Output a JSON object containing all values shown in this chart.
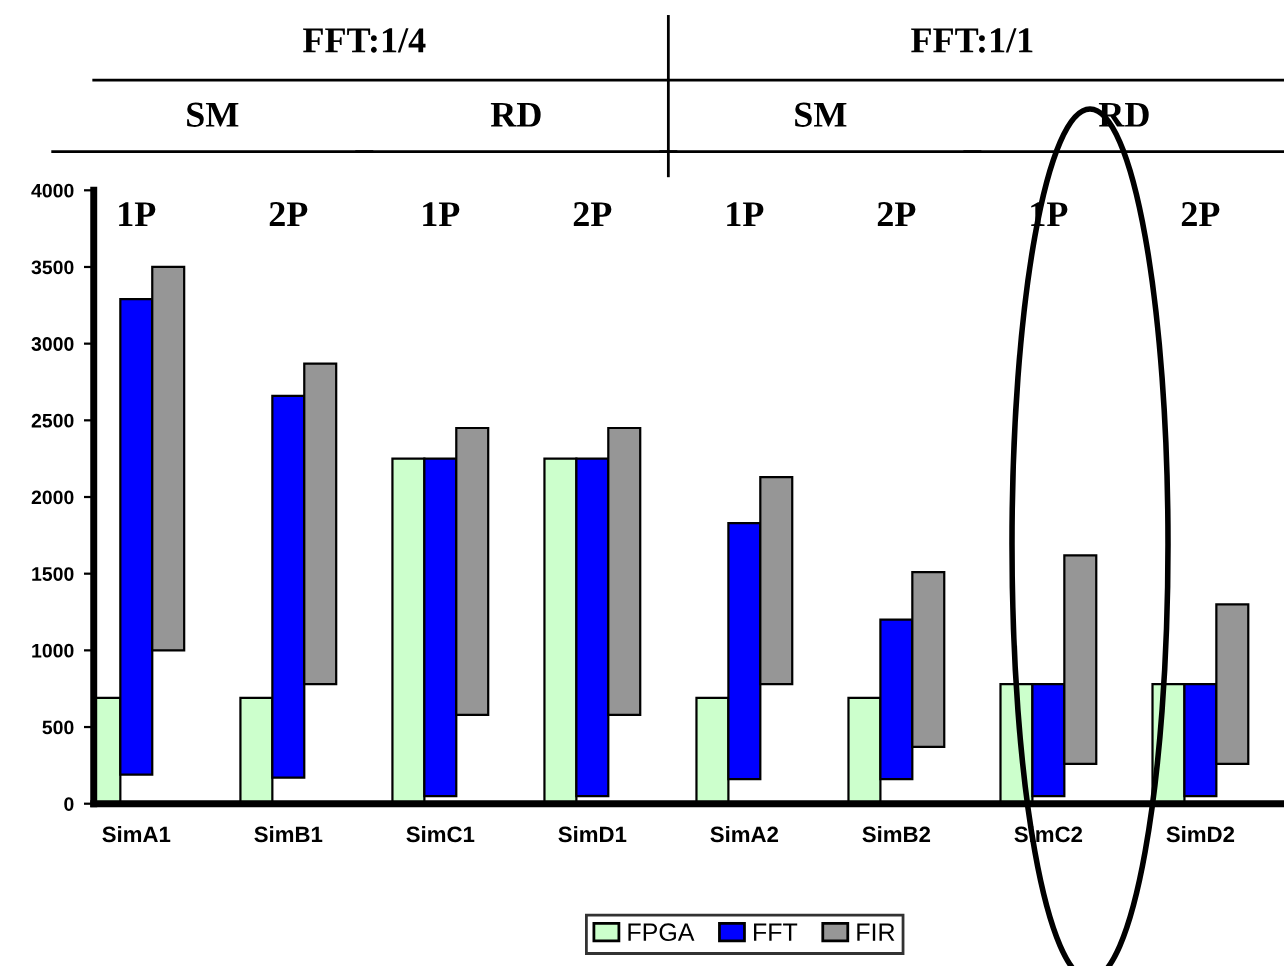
{
  "chart_data": {
    "type": "bar",
    "categories": [
      "SimA1",
      "SimB1",
      "SimC1",
      "SimD1",
      "SimA2",
      "SimB2",
      "SimC2",
      "SimD2"
    ],
    "series": [
      {
        "name": "FPGA",
        "color": "#ccffcc",
        "values": [
          690,
          690,
          2250,
          2250,
          690,
          690,
          780,
          780
        ],
        "base": [
          0,
          0,
          0,
          0,
          0,
          0,
          0,
          0
        ]
      },
      {
        "name": "FFT",
        "color": "#0000ff",
        "values": [
          3100,
          2490,
          2200,
          2200,
          1670,
          1040,
          730,
          730
        ],
        "base": [
          190,
          170,
          50,
          50,
          160,
          160,
          50,
          50
        ]
      },
      {
        "name": "FIR",
        "color": "#969696",
        "values": [
          2500,
          2090,
          1870,
          1870,
          1350,
          1140,
          1360,
          1040
        ],
        "base": [
          1000,
          780,
          580,
          580,
          780,
          370,
          260,
          260
        ]
      }
    ],
    "ylim": [
      0,
      4000
    ],
    "yticks": [
      0,
      500,
      1000,
      1500,
      2000,
      2500,
      3000,
      3500,
      4000
    ],
    "grid": false,
    "legend": "bottom",
    "annotations": [
      "FFT:1/4",
      "FFT:1/1",
      "SM",
      "RD",
      "SM",
      "RD",
      "1P",
      "2P",
      "1P",
      "2P",
      "1P",
      "2P",
      "1P",
      "2P"
    ]
  }
}
